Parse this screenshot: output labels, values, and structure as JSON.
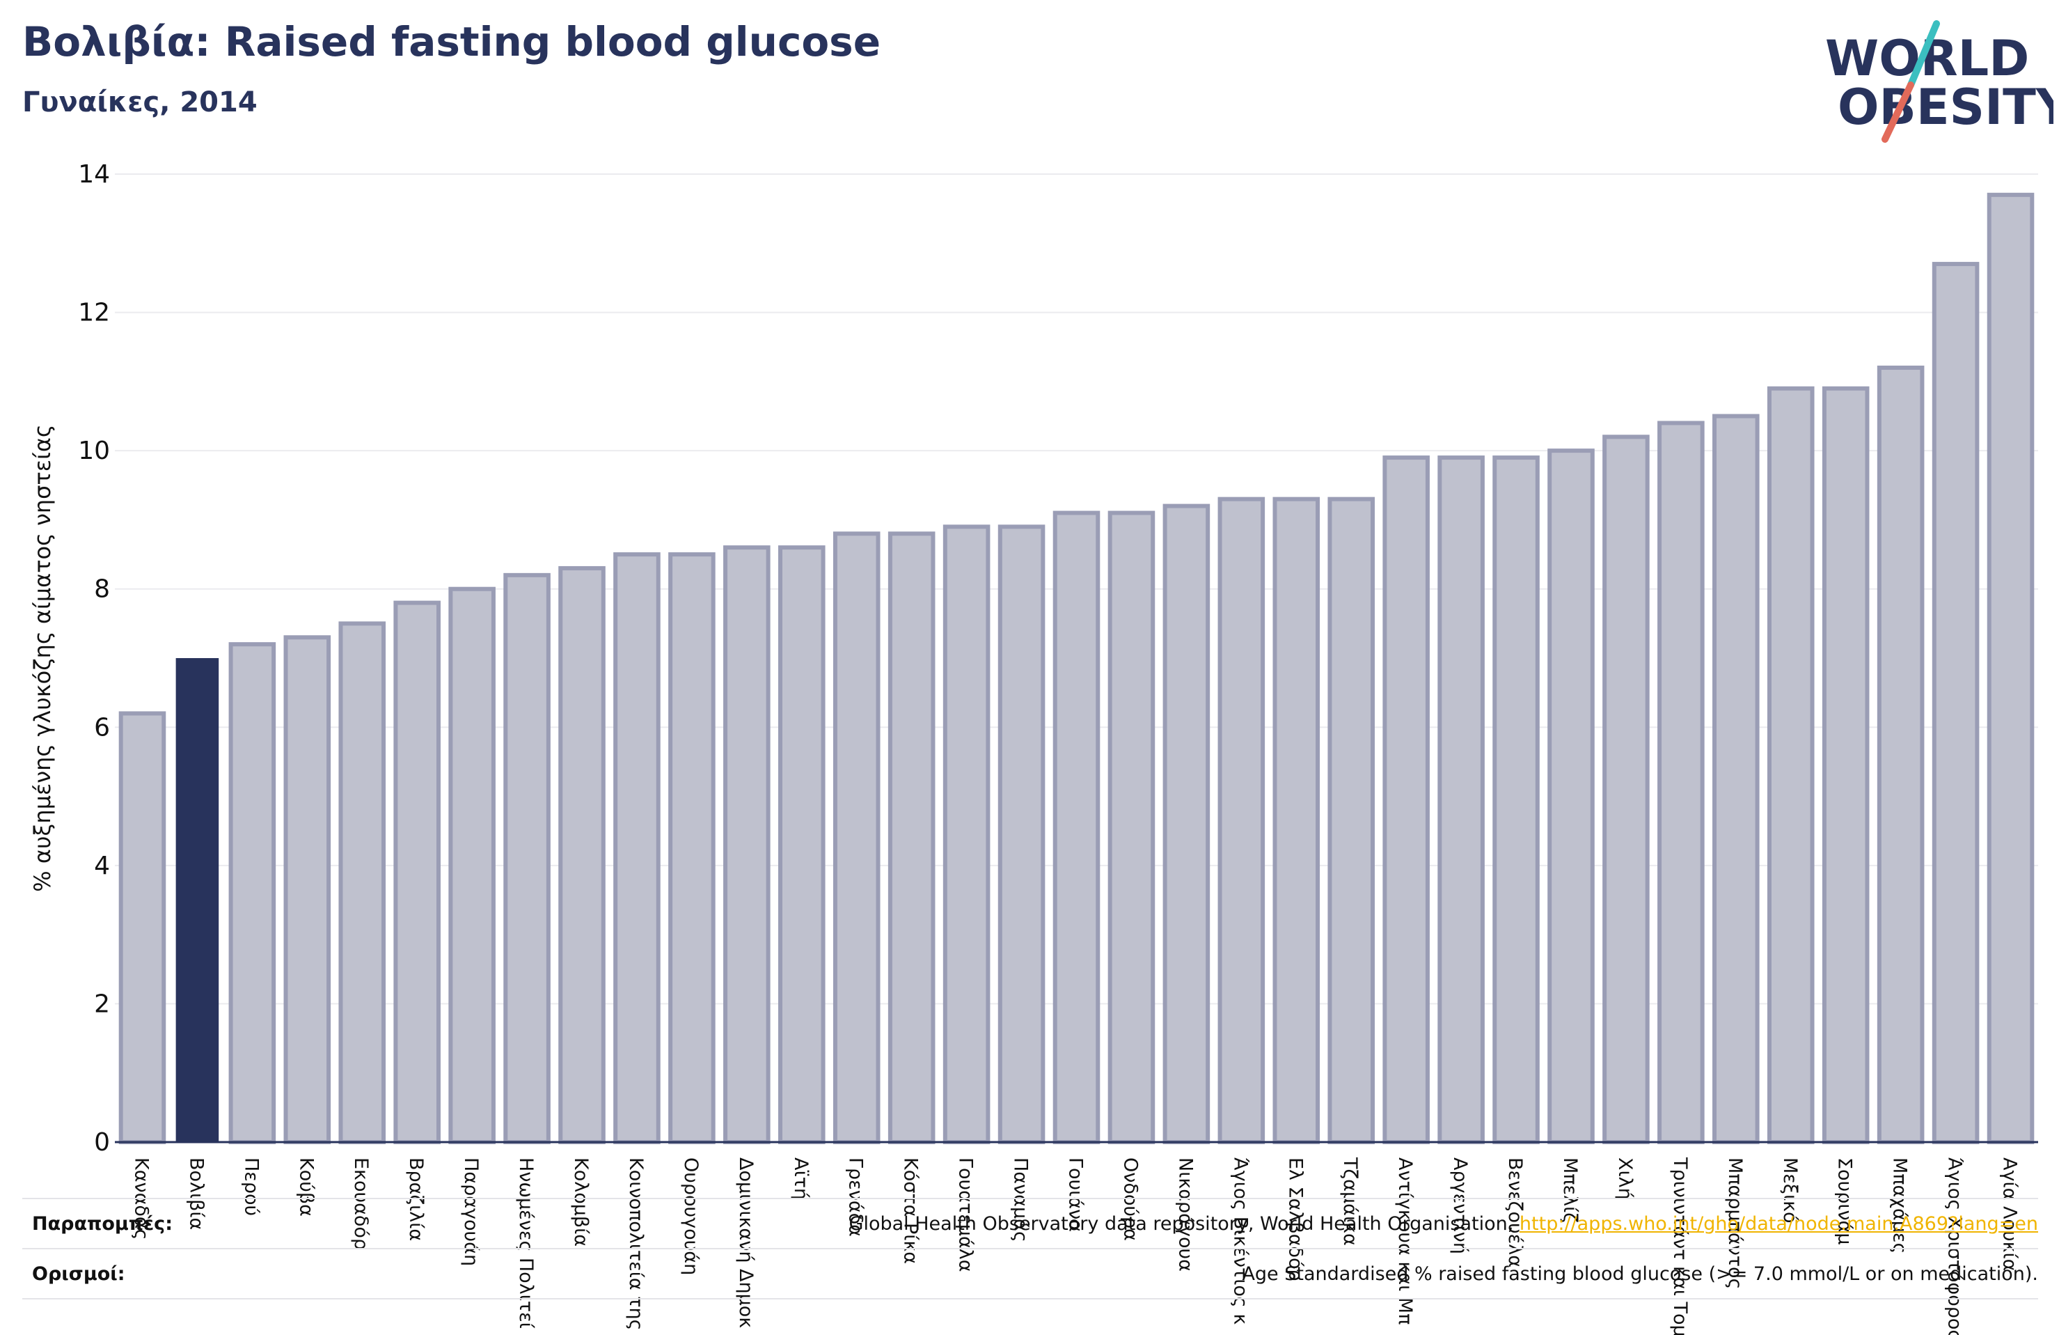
{
  "header": {
    "title": "Βολιβία: Raised fasting blood glucose",
    "subtitle": "Γυναίκες, 2014"
  },
  "logo": {
    "line1": "WORLD",
    "line2": "OBESITY",
    "colors": {
      "text": "#28335c",
      "slash_top": "#3bbfc0",
      "slash_bottom": "#e26a5a"
    }
  },
  "footnotes": {
    "sources_label": "Παραπομπές:",
    "sources_text": "Global Health Observatory data repository, World Health Organisation, ",
    "sources_link": "http://apps.who.int/gho/data/node.main.A869?lang=en",
    "definitions_label": "Ορισμοί:",
    "definitions_text": "Age Standardised % raised fasting blood glucose (>= 7.0 mmol/L or on medication)."
  },
  "colors": {
    "bar": "#bfc1ce",
    "bar_border": "#9a9db5",
    "highlight": "#28335c",
    "grid": "#ebebef",
    "axis": "#28335c"
  },
  "chart_data": {
    "type": "bar",
    "ylabel": "% αυξημένης γλυκόζης αίματος νηστείας",
    "ylim": [
      0,
      14
    ],
    "yticks": [
      0,
      2,
      4,
      6,
      8,
      10,
      12,
      14
    ],
    "grid": true,
    "highlight_category": "Βολιβία",
    "categories": [
      "Καναδάς",
      "Βολιβία",
      "Περού",
      "Κούβα",
      "Εκουαδόρ",
      "Βραζιλία",
      "Παραγουάη",
      "Ηνωμένες Πολιτεί",
      "Κολομβία",
      "Κοινοπολιτεία της",
      "Ουρουγουάη",
      "Δομινικανή Δημοκ",
      "Αϊτή",
      "Γρενάδα",
      "Κόστα Ρίκα",
      "Γουατεμάλα",
      "Παναμάς",
      "Γουιάνα",
      "Ονδούρα",
      "Νικαράγουα",
      "Άγιος Βικέντιος κ",
      "Ελ Σαλβαδόρ",
      "Τζαμάικα",
      "Αντίγκουα και Μπ",
      "Αργεντινή",
      "Βενεζουέλα",
      "Μπελίζ",
      "Χιλή",
      "Τρινιντάντ και Τομ",
      "Μπαρμπάντος",
      "Μεξικό",
      "Σουρινάμ",
      "Μπαχάμες",
      "Άγιος Χριστόφορος",
      "Αγία Λουκία"
    ],
    "values": [
      6.2,
      7.0,
      7.2,
      7.3,
      7.5,
      7.8,
      8.0,
      8.2,
      8.3,
      8.5,
      8.5,
      8.6,
      8.6,
      8.8,
      8.8,
      8.9,
      8.9,
      9.1,
      9.1,
      9.2,
      9.3,
      9.3,
      9.3,
      9.9,
      9.9,
      9.9,
      10.0,
      10.2,
      10.4,
      10.5,
      10.9,
      10.9,
      11.2,
      12.7,
      13.7
    ]
  }
}
